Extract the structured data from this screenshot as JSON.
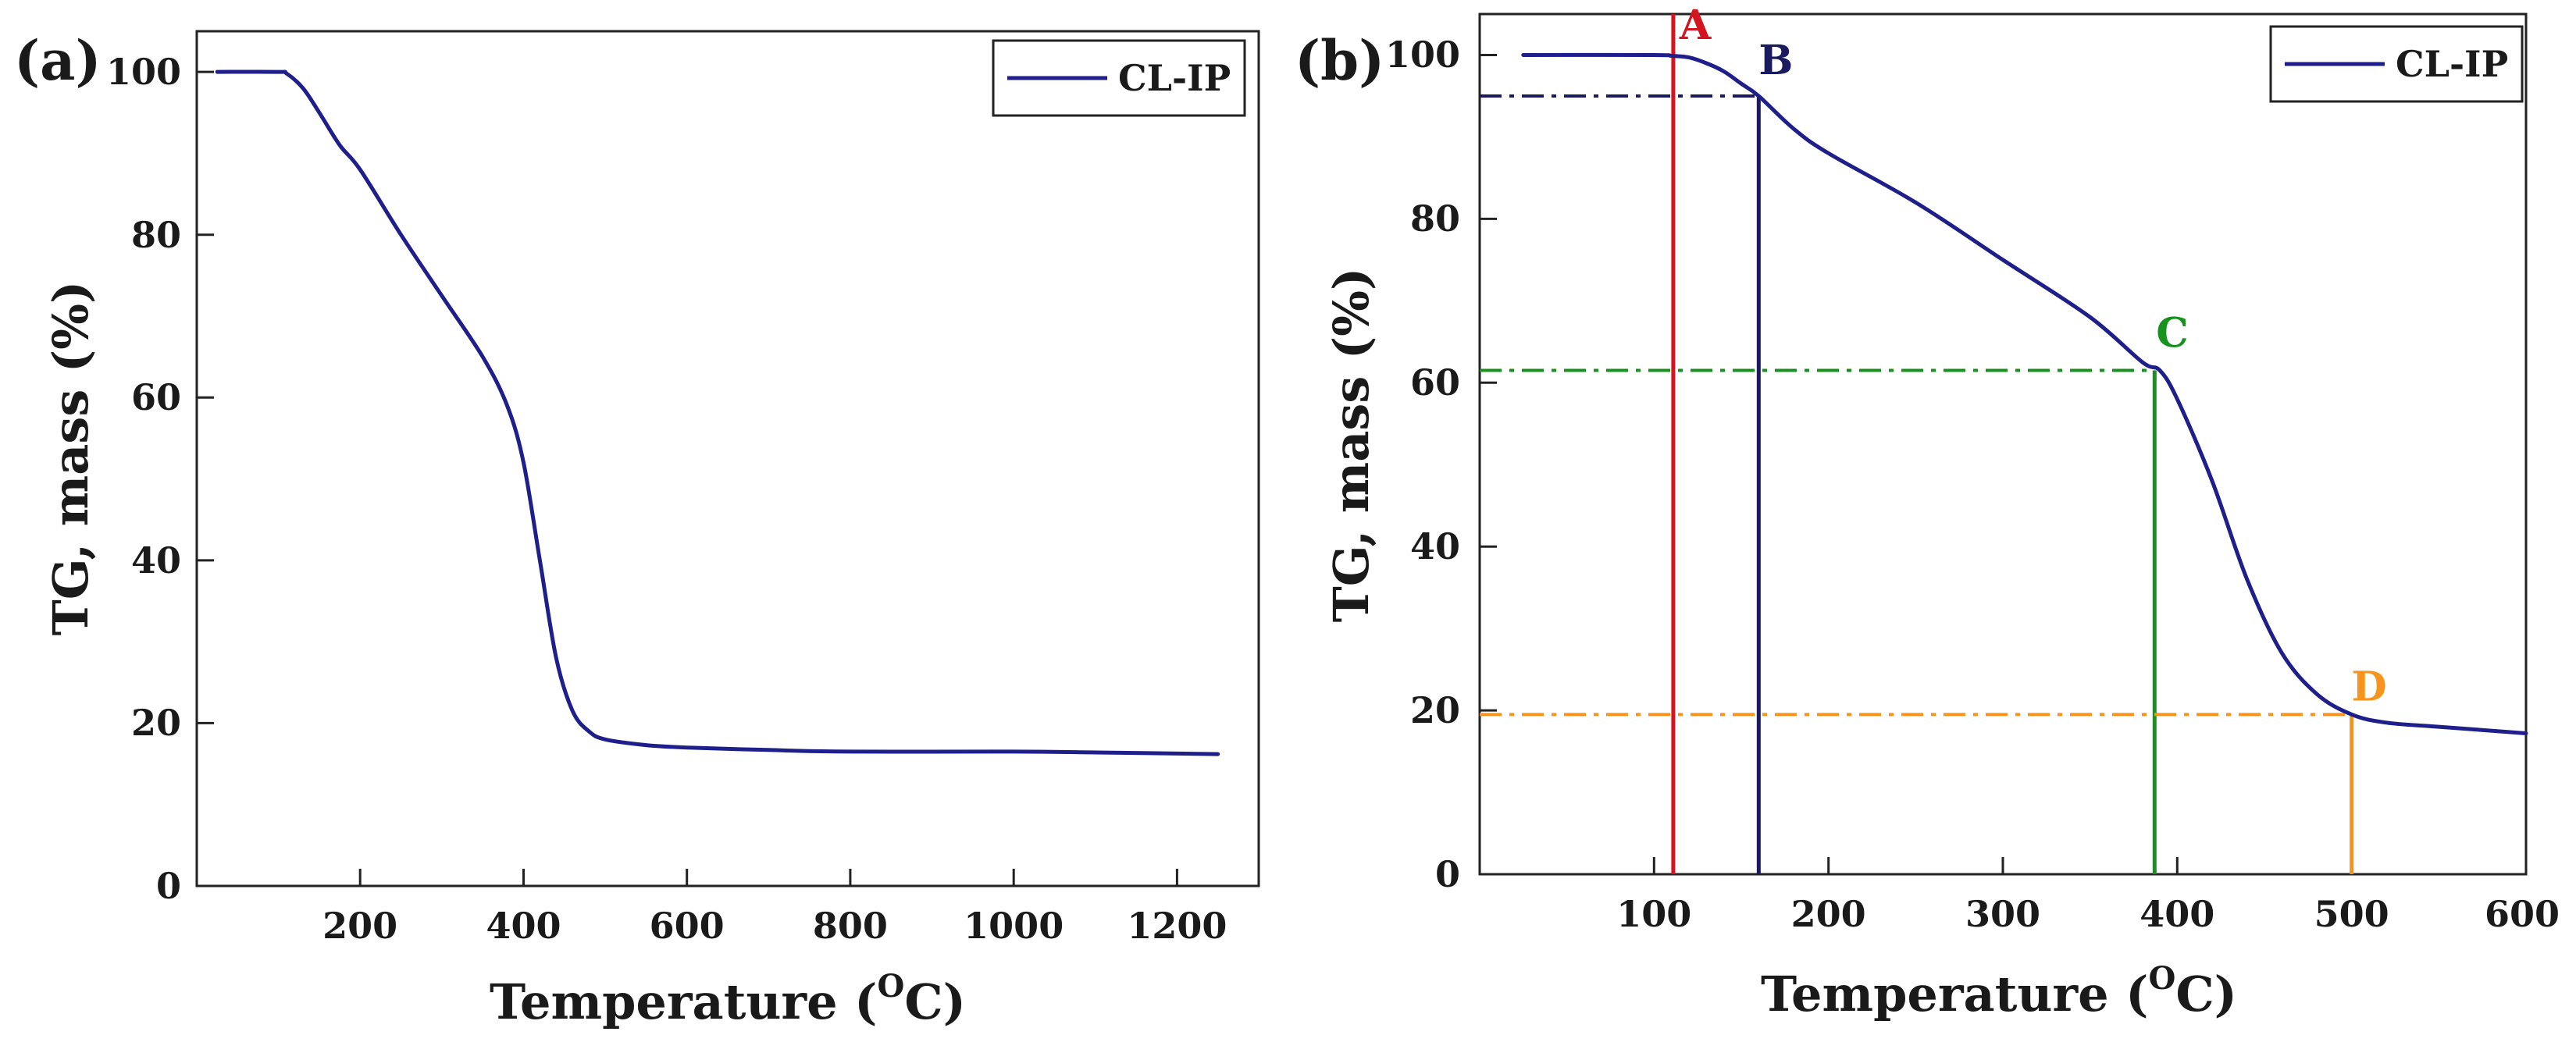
{
  "colors": {
    "series": "#1f1f8c",
    "A": "#d4141e",
    "B": "#1a1a5e",
    "C": "#17921e",
    "D": "#f7941d",
    "axis": "#222222"
  },
  "chart_data": [
    {
      "type": "line",
      "panel": "(a)",
      "title": "",
      "xlabel": "Temperature (",
      "xlabel_sup": "O",
      "xlabel_end": "C)",
      "ylabel": "TG, mass (%)",
      "xlim": [
        0,
        1300
      ],
      "ylim": [
        0,
        105
      ],
      "xticks": [
        200,
        400,
        600,
        800,
        1000,
        1200
      ],
      "xtick_labels": [
        "200",
        "400",
        "600",
        "800",
        "1000",
        "1200"
      ],
      "yticks": [
        0,
        20,
        40,
        60,
        80,
        100
      ],
      "ytick_labels": [
        "0",
        "20",
        "40",
        "60",
        "80",
        "100"
      ],
      "legend": {
        "position": "top-right",
        "entries": [
          "CL-IP"
        ]
      },
      "series": [
        {
          "name": "CL-IP",
          "x": [
            25,
            100,
            110,
            130,
            150,
            175,
            200,
            250,
            300,
            350,
            380,
            400,
            420,
            440,
            460,
            480,
            500,
            550,
            600,
            700,
            800,
            1000,
            1100,
            1250
          ],
          "y": [
            100,
            100,
            99.8,
            98,
            95,
            91,
            88,
            80,
            72.5,
            65,
            59,
            52,
            40,
            28,
            21.5,
            19,
            18,
            17.3,
            17,
            16.7,
            16.5,
            16.5,
            16.4,
            16.2
          ]
        }
      ]
    },
    {
      "type": "line",
      "panel": "(b)",
      "title": "",
      "xlabel": "Temperature (",
      "xlabel_sup": "O",
      "xlabel_end": "C)",
      "ylabel": "TG, mass (%)",
      "xlim": [
        0,
        600
      ],
      "ylim": [
        0,
        105
      ],
      "xticks": [
        100,
        200,
        300,
        400,
        500,
        600
      ],
      "xtick_labels": [
        "100",
        "200",
        "300",
        "400",
        "500",
        "600"
      ],
      "yticks": [
        0,
        20,
        40,
        60,
        80,
        100
      ],
      "ytick_labels": [
        "0",
        "20",
        "40",
        "60",
        "80",
        "100"
      ],
      "legend": {
        "position": "top-right",
        "entries": [
          "CL-IP"
        ]
      },
      "series": [
        {
          "name": "CL-IP",
          "x": [
            25,
            100,
            110,
            120,
            130,
            140,
            150,
            160,
            180,
            200,
            250,
            300,
            350,
            380,
            390,
            400,
            420,
            440,
            460,
            480,
            500,
            520,
            550,
            600
          ],
          "y": [
            100,
            100,
            99.9,
            99.7,
            99,
            98,
            96.5,
            95,
            91,
            88,
            82,
            75,
            68,
            62.5,
            61.5,
            58,
            48,
            36,
            27,
            22,
            19.5,
            18.5,
            18,
            17.2
          ]
        }
      ],
      "markers": [
        {
          "label": "A",
          "x": 111,
          "y": 100,
          "color": "#d4141e",
          "hline": false
        },
        {
          "label": "B",
          "x": 160,
          "y": 95,
          "color": "#1a1a5e",
          "hline": true
        },
        {
          "label": "C",
          "x": 387,
          "y": 61.5,
          "color": "#17921e",
          "hline": true
        },
        {
          "label": "D",
          "x": 500,
          "y": 19.5,
          "color": "#f7941d",
          "hline": true
        }
      ]
    }
  ]
}
